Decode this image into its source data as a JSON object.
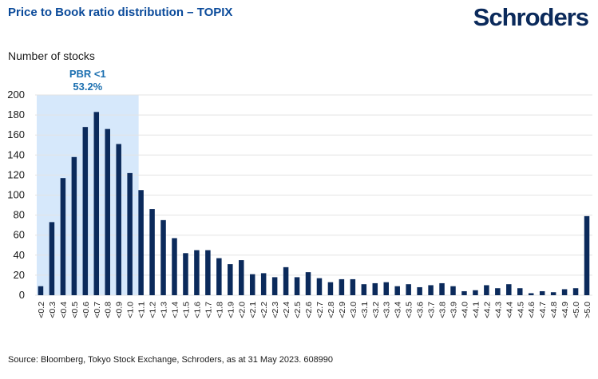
{
  "header": {
    "title": "Price to Book ratio distribution – TOPIX",
    "logo": "Schroders"
  },
  "footer": {
    "source": "Source: Bloomberg, Tokyo Stock Exchange, Schroders, as at 31 May 2023. 608990"
  },
  "colors": {
    "bar": "#0b2a5b",
    "highlight": "#d6e8fb",
    "annotation": "#1b6fb0",
    "grid": "#e3e3e3"
  },
  "chart_data": {
    "type": "bar",
    "title": "Price to Book ratio distribution – TOPIX",
    "xlabel": "",
    "ylabel": "Number of stocks",
    "ylim": [
      0,
      200
    ],
    "yticks": [
      0,
      20,
      40,
      60,
      80,
      100,
      120,
      140,
      160,
      180,
      200
    ],
    "grid": true,
    "categories": [
      "<0.2",
      "<0.3",
      "<0.4",
      "<0.5",
      "<0.6",
      "<0.7",
      "<0.8",
      "<0.9",
      "<1.0",
      "<1.1",
      "<1.2",
      "<1.3",
      "<1.4",
      "<1.5",
      "<1.6",
      "<1.7",
      "<1.8",
      "<1.9",
      "<2.0",
      "<2.1",
      "<2.2",
      "<2.3",
      "<2.4",
      "<2.5",
      "<2.6",
      "<2.7",
      "<2.8",
      "<2.9",
      "<3.0",
      "<3.1",
      "<3.2",
      "<3.3",
      "<3.4",
      "<3.5",
      "<3.6",
      "<3.7",
      "<3.8",
      "<3.9",
      "<4.0",
      "<4.1",
      "<4.2",
      "<4.3",
      "<4.4",
      "<4.5",
      "<4.6",
      "<4.7",
      "<4.8",
      "<4.9",
      "<5.0",
      ">5.0"
    ],
    "values": [
      9,
      73,
      117,
      138,
      168,
      183,
      166,
      151,
      122,
      105,
      86,
      75,
      57,
      42,
      45,
      45,
      37,
      31,
      35,
      21,
      22,
      18,
      28,
      18,
      23,
      17,
      13,
      16,
      16,
      11,
      12,
      13,
      9,
      11,
      8,
      10,
      12,
      9,
      4,
      5,
      10,
      7,
      11,
      7,
      2,
      4,
      3,
      6,
      7,
      79
    ],
    "highlight": {
      "categories": [
        "<0.2",
        "<0.3",
        "<0.4",
        "<0.5",
        "<0.6",
        "<0.7",
        "<0.8",
        "<0.9",
        "<1.0"
      ],
      "label": "PBR <1",
      "value_label": "53.2%"
    }
  }
}
